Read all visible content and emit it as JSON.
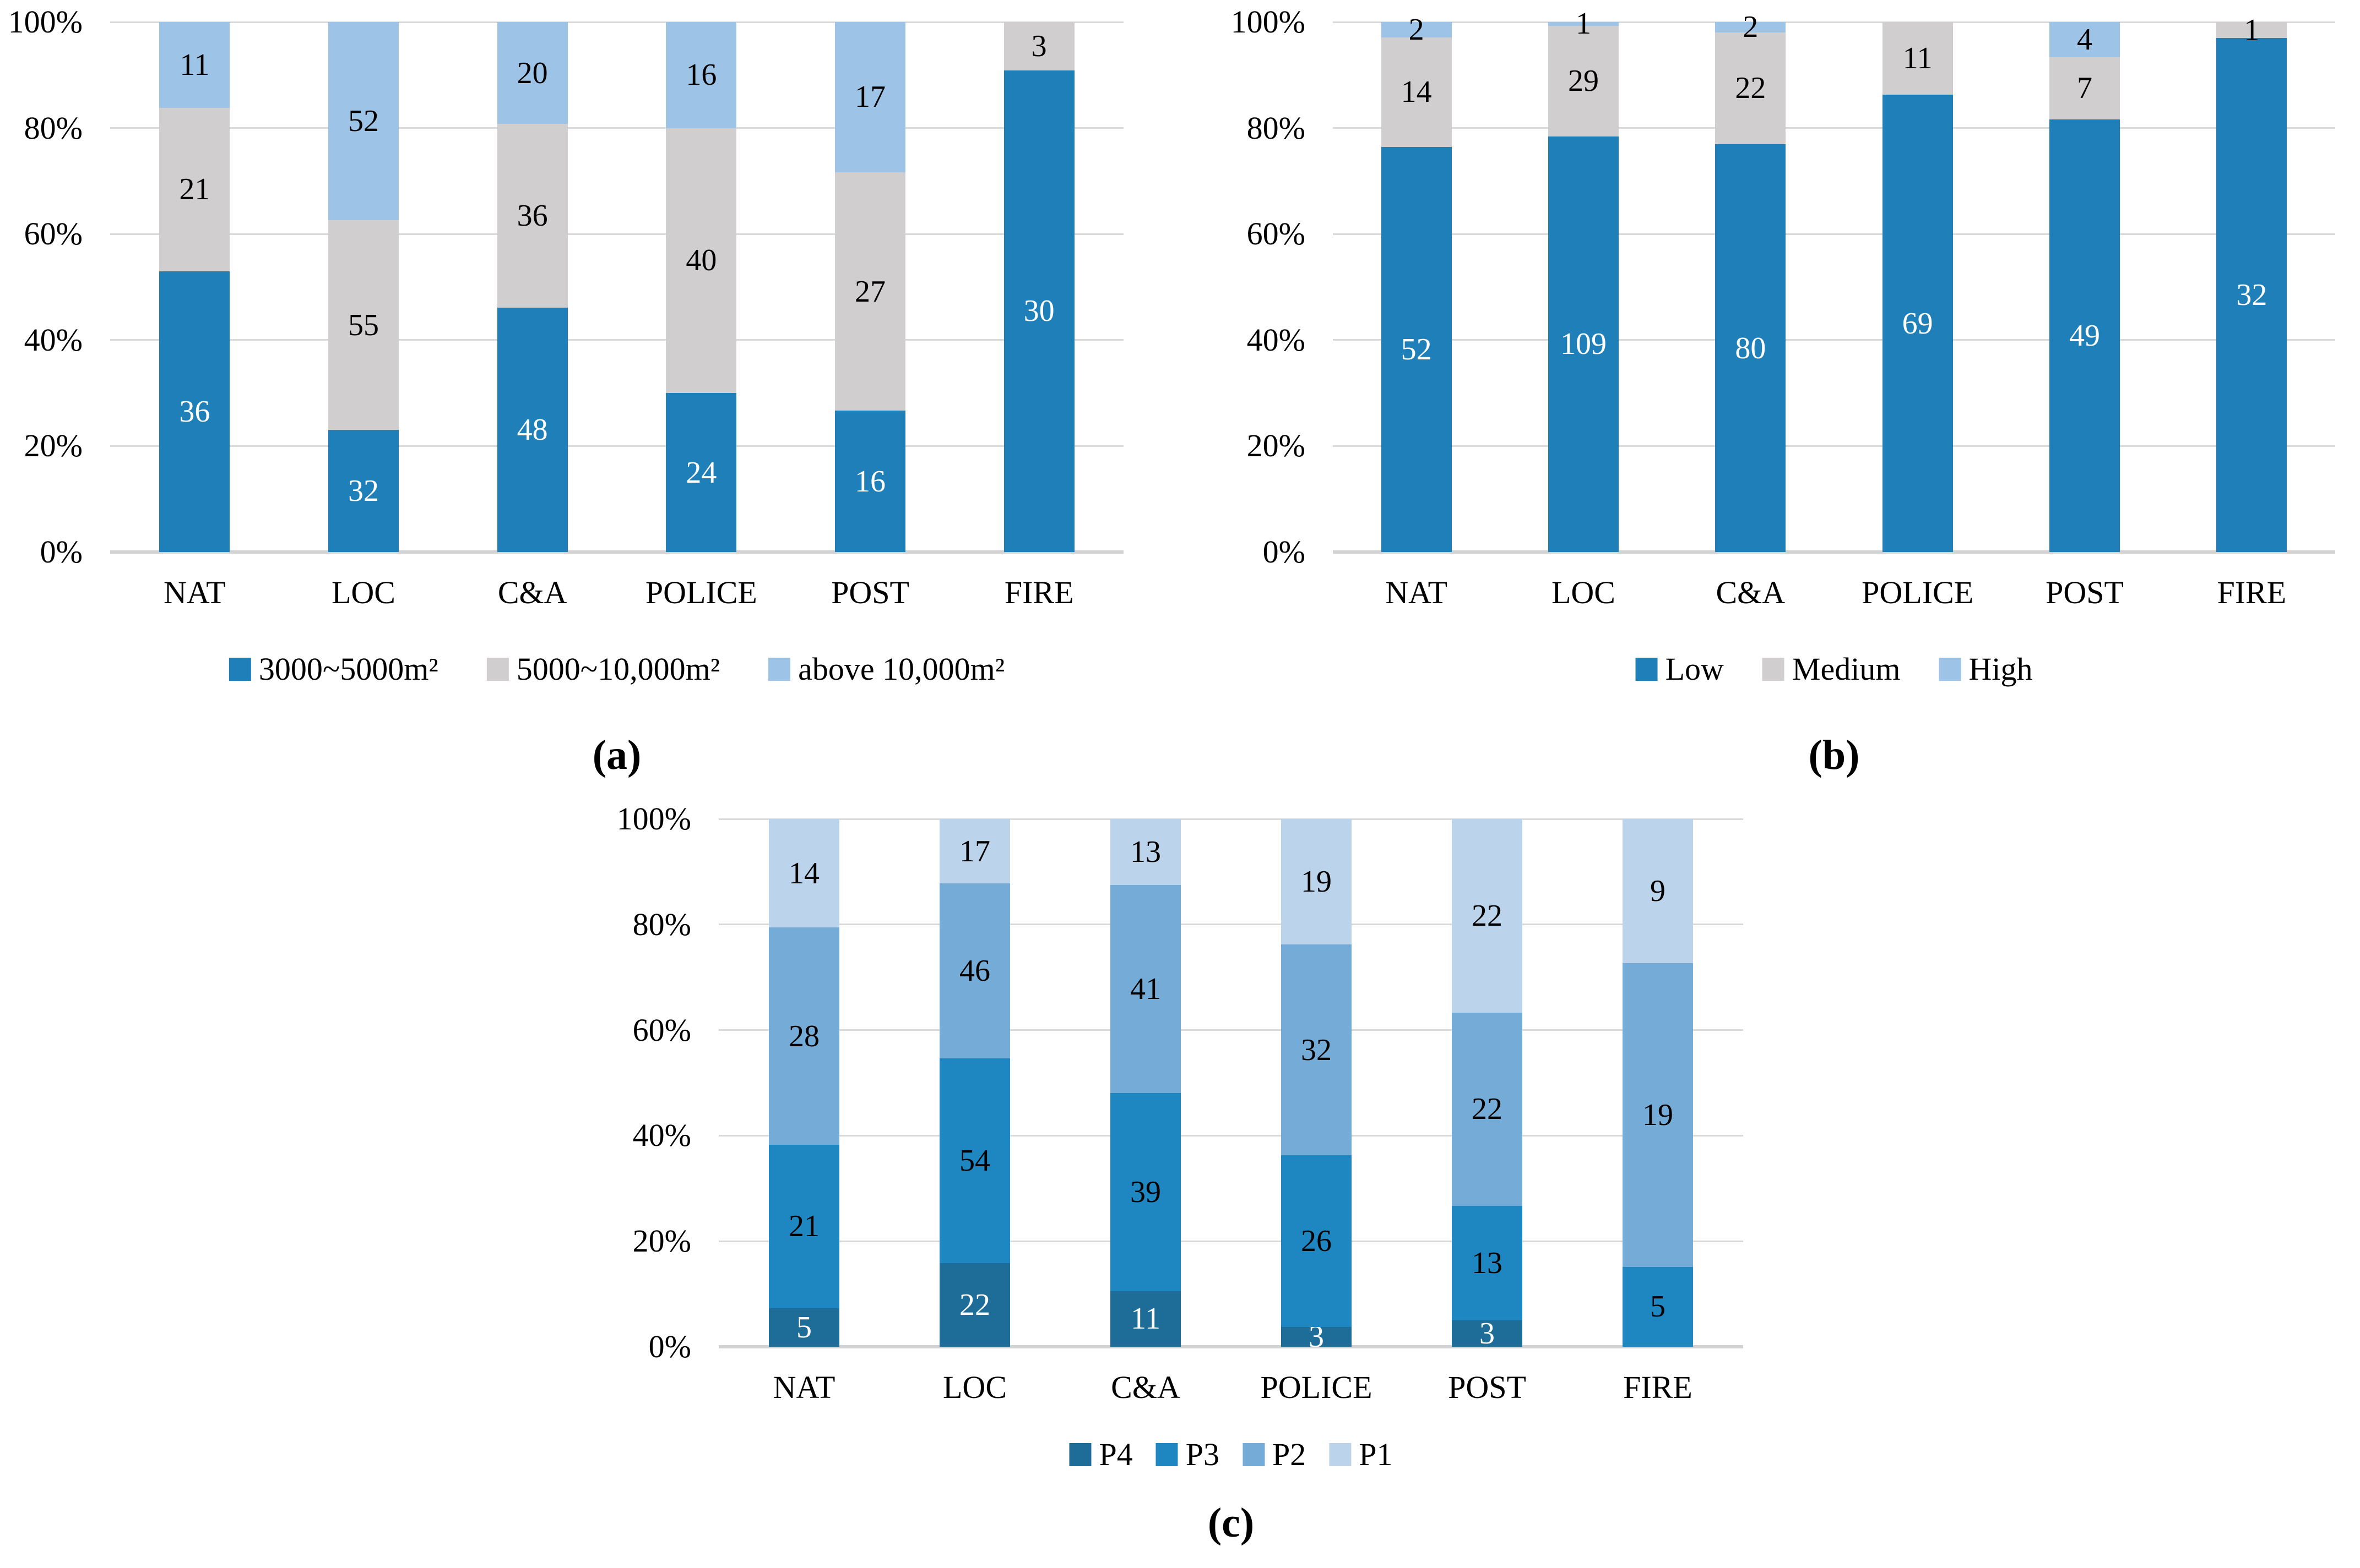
{
  "axis": {
    "ticks": [
      "0%",
      "20%",
      "40%",
      "60%",
      "80%",
      "100%"
    ]
  },
  "chart_data": [
    {
      "id": "a",
      "type": "bar",
      "stacked_percent": true,
      "label": "(a)",
      "ylim": [
        0,
        100
      ],
      "y_tick_labels": [
        "0%",
        "20%",
        "40%",
        "60%",
        "80%",
        "100%"
      ],
      "grid": true,
      "legend_position": "bottom",
      "show_zero_labels": false,
      "categories": [
        "NAT",
        "LOC",
        "C&A",
        "POLICE",
        "POST",
        "FIRE"
      ],
      "series": [
        {
          "name": "3000~5000m²",
          "color": "#1F80B9",
          "label_color": "#FFFFFF",
          "values": [
            36,
            32,
            48,
            24,
            16,
            30
          ]
        },
        {
          "name": "5000~10,000m²",
          "color": "#D0CECE",
          "label_color": "#000000",
          "values": [
            21,
            55,
            36,
            40,
            27,
            3
          ]
        },
        {
          "name": "above 10,000m²",
          "color": "#9DC3E6",
          "label_color": "#000000",
          "values": [
            11,
            52,
            20,
            16,
            17,
            0
          ]
        }
      ]
    },
    {
      "id": "b",
      "type": "bar",
      "stacked_percent": true,
      "label": "(b)",
      "ylim": [
        0,
        100
      ],
      "y_tick_labels": [
        "0%",
        "20%",
        "40%",
        "60%",
        "80%",
        "100%"
      ],
      "grid": true,
      "legend_position": "bottom",
      "show_zero_labels": false,
      "categories": [
        "NAT",
        "LOC",
        "C&A",
        "POLICE",
        "POST",
        "FIRE"
      ],
      "series": [
        {
          "name": "Low",
          "color": "#1F80B9",
          "label_color": "#FFFFFF",
          "values": [
            52,
            109,
            80,
            69,
            49,
            32
          ]
        },
        {
          "name": "Medium",
          "color": "#D0CECE",
          "label_color": "#000000",
          "values": [
            14,
            29,
            22,
            11,
            7,
            1
          ]
        },
        {
          "name": "High",
          "color": "#9DC3E6",
          "label_color": "#000000",
          "values": [
            2,
            1,
            2,
            0,
            4,
            0
          ]
        }
      ]
    },
    {
      "id": "c",
      "type": "bar",
      "stacked_percent": true,
      "label": "(c)",
      "ylim": [
        0,
        100
      ],
      "y_tick_labels": [
        "0%",
        "20%",
        "40%",
        "60%",
        "80%",
        "100%"
      ],
      "grid": true,
      "legend_position": "bottom",
      "show_zero_labels": true,
      "categories": [
        "NAT",
        "LOC",
        "C&A",
        "POLICE",
        "POST",
        "FIRE"
      ],
      "series": [
        {
          "name": "P4",
          "color": "#1E6D99",
          "label_color": "#FFFFFF",
          "values": [
            5,
            22,
            11,
            3,
            3,
            0
          ]
        },
        {
          "name": "P3",
          "color": "#1E87C2",
          "label_color": "#000000",
          "values": [
            21,
            54,
            39,
            26,
            13,
            5
          ]
        },
        {
          "name": "P2",
          "color": "#74ABD7",
          "label_color": "#000000",
          "values": [
            28,
            46,
            41,
            32,
            22,
            19
          ]
        },
        {
          "name": "P1",
          "color": "#BCD4EB",
          "label_color": "#000000",
          "values": [
            14,
            17,
            13,
            19,
            22,
            9
          ]
        }
      ]
    }
  ]
}
